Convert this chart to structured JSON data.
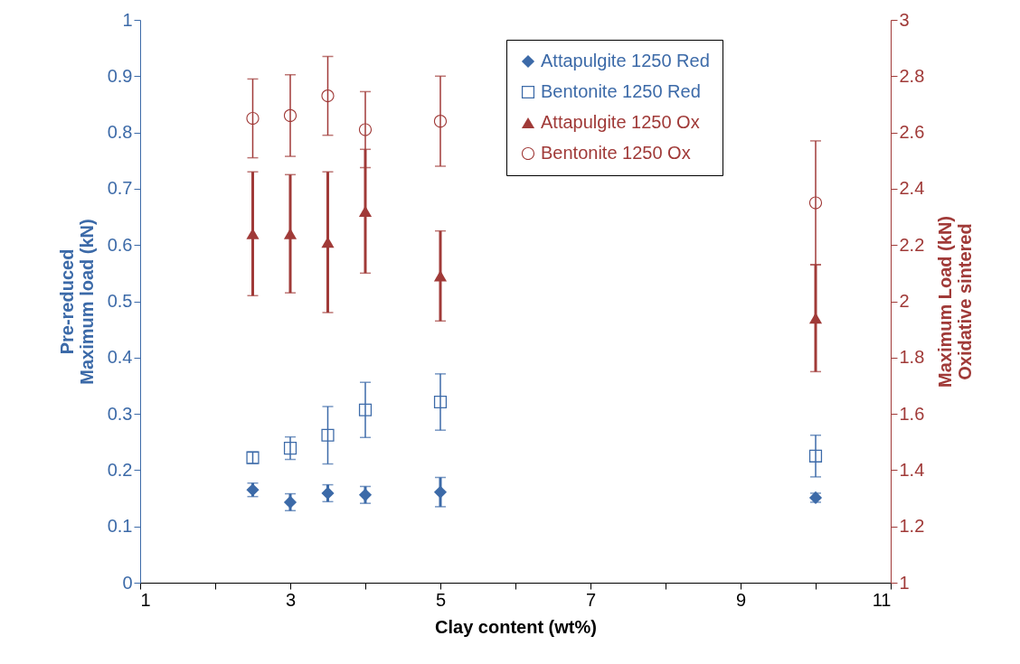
{
  "chart_data": {
    "type": "scatter",
    "xlabel": "Clay content (wt%)",
    "ylabel": "Pre-reduced\nMaximum load (kN)",
    "y2label": "Maximum Load (kN)\nOxidative sintered",
    "x": [
      2.5,
      3,
      3.5,
      4,
      5,
      10
    ],
    "series": [
      {
        "name": "Attapulgite 1250 Red",
        "color": "#3c6aa8",
        "marker": "diamond",
        "values": [
          0.165,
          0.143,
          0.159,
          0.156,
          0.161,
          0.151
        ],
        "errors": [
          0.012,
          0.015,
          0.015,
          0.015,
          0.026,
          0.008
        ]
      },
      {
        "name": "Bentonite 1250 Red",
        "color": "#3c6aa8",
        "marker": "square",
        "values": [
          0.222,
          0.239,
          0.262,
          0.307,
          0.321,
          0.225
        ],
        "errors": [
          0.01,
          0.02,
          0.051,
          0.049,
          0.05,
          0.037
        ]
      },
      {
        "name": "Attapulgite 1250 Ox",
        "color": "#a03a38",
        "marker": "triangle",
        "axis": "y2",
        "values": [
          2.24,
          2.24,
          2.21,
          2.32,
          2.09,
          1.94
        ],
        "errors": [
          0.22,
          0.21,
          0.25,
          0.22,
          0.16,
          0.19
        ]
      },
      {
        "name": "Bentonite 1250 Ox",
        "color": "#a03a38",
        "marker": "circle",
        "axis": "y2",
        "values": [
          2.65,
          2.66,
          2.73,
          2.61,
          2.64,
          2.35
        ],
        "errors": [
          0.14,
          0.145,
          0.14,
          0.135,
          0.16,
          0.22
        ]
      }
    ],
    "xlim": [
      1,
      11
    ],
    "xticks": [
      1,
      {
        "value": 2,
        "label": null
      },
      3,
      {
        "value": 4,
        "label": null
      },
      5,
      {
        "value": 6,
        "label": null
      },
      7,
      {
        "value": 8,
        "label": null
      },
      9,
      {
        "value": 10,
        "label": null
      },
      11
    ],
    "ylim": [
      0,
      1
    ],
    "yticks": [
      0,
      0.1,
      0.2,
      0.3,
      0.4,
      0.5,
      0.6,
      0.7,
      0.8,
      0.9,
      1
    ],
    "y2lim": [
      1,
      3
    ],
    "y2ticks": [
      1,
      1.2,
      1.4,
      1.6,
      1.8,
      2,
      2.2,
      2.4,
      2.6,
      2.8,
      3
    ],
    "legend": "top right",
    "grid": false
  }
}
